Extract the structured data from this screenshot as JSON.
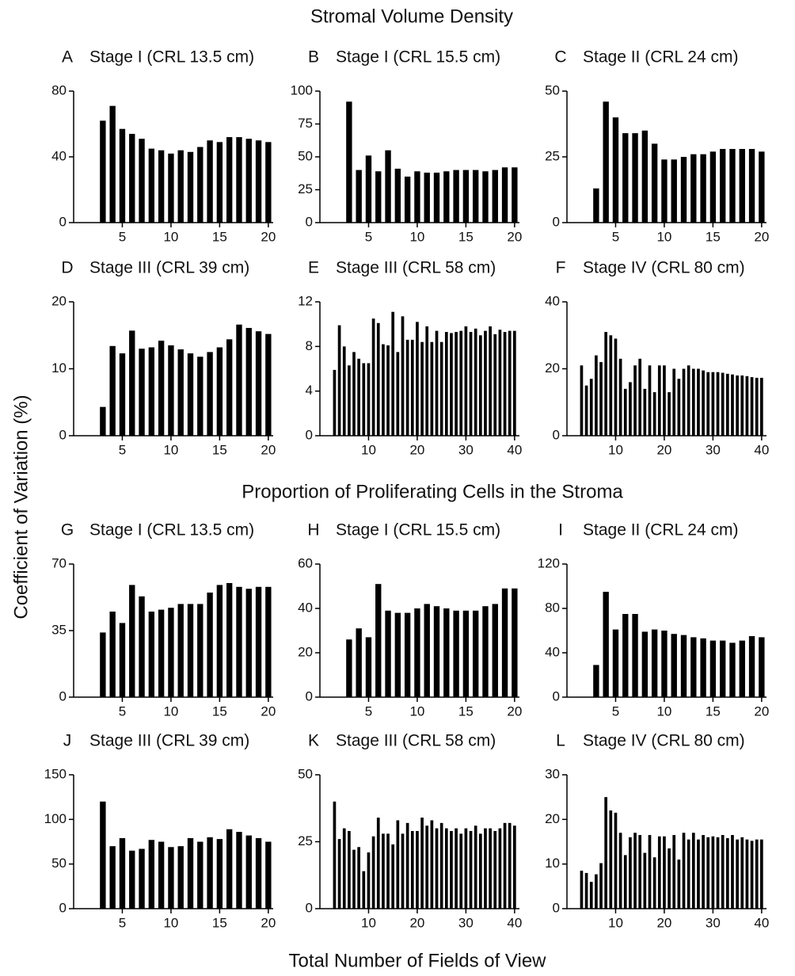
{
  "section_titles": [
    "Stromal Volume Density",
    "Proportion of Proliferating Cells in the Stroma"
  ],
  "ylabel": "Coefficient of Variation (%)",
  "xlabel": "Total Number of Fields of View",
  "chart_data": [
    {
      "type": "bar",
      "label": "A",
      "title": "Stage I (CRL 13.5 cm)",
      "color": "#000000",
      "x": [
        3,
        4,
        5,
        6,
        7,
        8,
        9,
        10,
        11,
        12,
        13,
        14,
        15,
        16,
        17,
        18,
        19,
        20
      ],
      "values": [
        62,
        71,
        57,
        54,
        51,
        45,
        44,
        42,
        44,
        43,
        46,
        50,
        49,
        52,
        52,
        51,
        50,
        49
      ],
      "xlim": [
        0,
        20.5
      ],
      "xticks": [
        5,
        10,
        15,
        20
      ],
      "ylim": [
        0,
        80
      ],
      "yticks": [
        0,
        40,
        80
      ]
    },
    {
      "type": "bar",
      "label": "B",
      "title": "Stage I (CRL 15.5 cm)",
      "color": "#000000",
      "x": [
        3,
        4,
        5,
        6,
        7,
        8,
        9,
        10,
        11,
        12,
        13,
        14,
        15,
        16,
        17,
        18,
        19,
        20
      ],
      "values": [
        92,
        40,
        51,
        39,
        55,
        41,
        35,
        39,
        38,
        38,
        39,
        40,
        40,
        40,
        39,
        40,
        42,
        42
      ],
      "xlim": [
        0,
        20.5
      ],
      "xticks": [
        5,
        10,
        15,
        20
      ],
      "ylim": [
        0,
        100
      ],
      "yticks": [
        0,
        25,
        50,
        75,
        100
      ]
    },
    {
      "type": "bar",
      "label": "C",
      "title": "Stage II (CRL 24 cm)",
      "color": "#000000",
      "x": [
        3,
        4,
        5,
        6,
        7,
        8,
        9,
        10,
        11,
        12,
        13,
        14,
        15,
        16,
        17,
        18,
        19,
        20
      ],
      "values": [
        13,
        46,
        40,
        34,
        34,
        35,
        30,
        24,
        24,
        25,
        26,
        26,
        27,
        28,
        28,
        28,
        28,
        27
      ],
      "xlim": [
        0,
        20.5
      ],
      "xticks": [
        5,
        10,
        15,
        20
      ],
      "ylim": [
        0,
        50
      ],
      "yticks": [
        0,
        25,
        50
      ]
    },
    {
      "type": "bar",
      "label": "D",
      "title": "Stage III (CRL 39 cm)",
      "color": "#000000",
      "x": [
        3,
        4,
        5,
        6,
        7,
        8,
        9,
        10,
        11,
        12,
        13,
        14,
        15,
        16,
        17,
        18,
        19,
        20
      ],
      "values": [
        4.3,
        13.4,
        12.3,
        15.7,
        13,
        13.2,
        14.2,
        13.5,
        12.9,
        12.3,
        11.8,
        12.5,
        13.2,
        14.4,
        16.6,
        16.1,
        15.6,
        15.2
      ],
      "xlim": [
        0,
        20.5
      ],
      "xticks": [
        5,
        10,
        15,
        20
      ],
      "ylim": [
        0,
        20
      ],
      "yticks": [
        0,
        10,
        20
      ]
    },
    {
      "type": "bar",
      "label": "E",
      "title": "Stage III (CRL 58 cm)",
      "color": "#000000",
      "x": [
        3,
        4,
        5,
        6,
        7,
        8,
        9,
        10,
        11,
        12,
        13,
        14,
        15,
        16,
        17,
        18,
        19,
        20,
        21,
        22,
        23,
        24,
        25,
        26,
        27,
        28,
        29,
        30,
        31,
        32,
        33,
        34,
        35,
        36,
        37,
        38,
        39,
        40
      ],
      "values": [
        5.9,
        9.9,
        8,
        6.3,
        7.5,
        6.9,
        6.5,
        6.5,
        10.5,
        10.1,
        8.2,
        8.1,
        11.1,
        7.5,
        10.7,
        8.6,
        8.6,
        10.2,
        8.4,
        9.8,
        8.4,
        9.4,
        8.4,
        9.3,
        9.2,
        9.3,
        9.4,
        9.8,
        9.3,
        9.6,
        9.0,
        9.4,
        9.8,
        9.1,
        9.5,
        9.3,
        9.4,
        9.4
      ],
      "xlim": [
        0,
        41
      ],
      "xticks": [
        10,
        20,
        30,
        40
      ],
      "ylim": [
        0,
        12
      ],
      "yticks": [
        0,
        4,
        8,
        12
      ]
    },
    {
      "type": "bar",
      "label": "F",
      "title": "Stage IV (CRL 80 cm)",
      "color": "#000000",
      "x": [
        3,
        4,
        5,
        6,
        7,
        8,
        9,
        10,
        11,
        12,
        13,
        14,
        15,
        16,
        17,
        18,
        19,
        20,
        21,
        22,
        23,
        24,
        25,
        26,
        27,
        28,
        29,
        30,
        31,
        32,
        33,
        34,
        35,
        36,
        37,
        38,
        39,
        40
      ],
      "values": [
        21,
        15,
        17,
        24,
        22,
        31,
        30,
        29,
        23,
        14,
        16,
        21,
        23,
        14,
        21,
        13,
        21,
        21,
        13,
        20,
        17,
        20,
        21,
        20,
        20,
        19.5,
        19,
        19,
        19,
        18.8,
        18.5,
        18.3,
        18,
        18,
        17.8,
        17.5,
        17.3,
        17.3
      ],
      "xlim": [
        0,
        41
      ],
      "xticks": [
        10,
        20,
        30,
        40
      ],
      "ylim": [
        0,
        40
      ],
      "yticks": [
        0,
        20,
        40
      ]
    },
    {
      "type": "bar",
      "label": "G",
      "title": "Stage I (CRL 13.5 cm)",
      "color": "#000000",
      "x": [
        3,
        4,
        5,
        6,
        7,
        8,
        9,
        10,
        11,
        12,
        13,
        14,
        15,
        16,
        17,
        18,
        19,
        20
      ],
      "values": [
        34,
        45,
        39,
        59,
        53,
        45,
        46,
        47,
        49,
        49,
        49,
        55,
        59,
        60,
        58,
        57,
        58,
        58
      ],
      "xlim": [
        0,
        20.5
      ],
      "xticks": [
        5,
        10,
        15,
        20
      ],
      "ylim": [
        0,
        70
      ],
      "yticks": [
        0,
        35,
        70
      ]
    },
    {
      "type": "bar",
      "label": "H",
      "title": "Stage I (CRL 15.5 cm)",
      "color": "#000000",
      "x": [
        3,
        4,
        5,
        6,
        7,
        8,
        9,
        10,
        11,
        12,
        13,
        14,
        15,
        16,
        17,
        18,
        19,
        20
      ],
      "values": [
        26,
        31,
        27,
        51,
        39,
        38,
        38,
        40,
        42,
        41,
        40,
        39,
        39,
        39,
        41,
        42,
        49,
        49
      ],
      "xlim": [
        0,
        20.5
      ],
      "xticks": [
        5,
        10,
        15,
        20
      ],
      "ylim": [
        0,
        60
      ],
      "yticks": [
        0,
        20,
        40,
        60
      ]
    },
    {
      "type": "bar",
      "label": "I",
      "title": "Stage II (CRL 24 cm)",
      "color": "#000000",
      "x": [
        3,
        4,
        5,
        6,
        7,
        8,
        9,
        10,
        11,
        12,
        13,
        14,
        15,
        16,
        17,
        18,
        19,
        20
      ],
      "values": [
        29,
        95,
        61,
        75,
        75,
        59,
        61,
        60,
        57,
        56,
        54,
        53,
        51,
        51,
        49,
        51,
        55,
        54
      ],
      "xlim": [
        0,
        20.5
      ],
      "xticks": [
        5,
        10,
        15,
        20
      ],
      "ylim": [
        0,
        120
      ],
      "yticks": [
        0,
        40,
        80,
        120
      ]
    },
    {
      "type": "bar",
      "label": "J",
      "title": "Stage III (CRL 39 cm)",
      "color": "#000000",
      "x": [
        3,
        4,
        5,
        6,
        7,
        8,
        9,
        10,
        11,
        12,
        13,
        14,
        15,
        16,
        17,
        18,
        19,
        20
      ],
      "values": [
        120,
        70,
        79,
        65,
        67,
        77,
        75,
        69,
        70,
        79,
        75,
        80,
        78,
        89,
        86,
        82,
        79,
        75
      ],
      "xlim": [
        0,
        20.5
      ],
      "xticks": [
        5,
        10,
        15,
        20
      ],
      "ylim": [
        0,
        150
      ],
      "yticks": [
        0,
        50,
        100,
        150
      ]
    },
    {
      "type": "bar",
      "label": "K",
      "title": "Stage III (CRL 58 cm)",
      "color": "#000000",
      "x": [
        3,
        4,
        5,
        6,
        7,
        8,
        9,
        10,
        11,
        12,
        13,
        14,
        15,
        16,
        17,
        18,
        19,
        20,
        21,
        22,
        23,
        24,
        25,
        26,
        27,
        28,
        29,
        30,
        31,
        32,
        33,
        34,
        35,
        36,
        37,
        38,
        39,
        40
      ],
      "values": [
        40,
        26,
        30,
        29,
        22,
        23,
        14,
        21,
        27,
        34,
        28,
        28,
        24,
        33,
        28,
        32,
        29,
        29,
        34,
        31,
        33,
        30,
        32,
        30,
        29,
        30,
        28,
        30,
        29,
        31,
        28,
        30,
        30,
        29,
        30,
        32,
        32,
        31
      ],
      "xlim": [
        0,
        41
      ],
      "xticks": [
        10,
        20,
        30,
        40
      ],
      "ylim": [
        0,
        50
      ],
      "yticks": [
        0,
        25,
        50
      ]
    },
    {
      "type": "bar",
      "label": "L",
      "title": "Stage IV (CRL 80 cm)",
      "color": "#000000",
      "x": [
        3,
        4,
        5,
        6,
        7,
        8,
        9,
        10,
        11,
        12,
        13,
        14,
        15,
        16,
        17,
        18,
        19,
        20,
        21,
        22,
        23,
        24,
        25,
        26,
        27,
        28,
        29,
        30,
        31,
        32,
        33,
        34,
        35,
        36,
        37,
        38,
        39,
        40
      ],
      "values": [
        8.5,
        8,
        6,
        7.7,
        10.2,
        25,
        22,
        21.5,
        17,
        12,
        16,
        17,
        16.5,
        12.5,
        16.5,
        11.5,
        16.2,
        16.2,
        13.5,
        16.5,
        11,
        17,
        15.5,
        17,
        15.5,
        16.5,
        16,
        16.2,
        16,
        16.5,
        15.8,
        16.5,
        15.5,
        16,
        15.5,
        15.2,
        15.5,
        15.5
      ],
      "xlim": [
        0,
        41
      ],
      "xticks": [
        10,
        20,
        30,
        40
      ],
      "ylim": [
        0,
        30
      ],
      "yticks": [
        0,
        10,
        20,
        30
      ]
    }
  ]
}
